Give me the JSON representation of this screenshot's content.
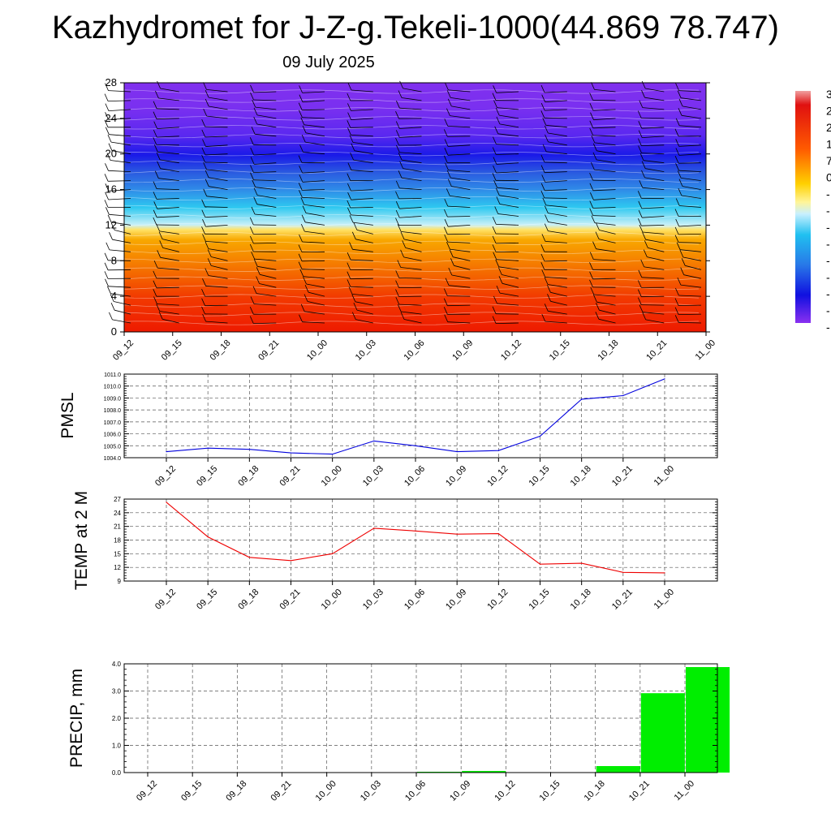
{
  "title": "Kazhydromet for J-Z-g.Tekeli-1000(44.869 78.747)",
  "subtitle": "09 July 2025",
  "colors": {
    "pmsl_line": "#0000dd",
    "temp_line": "#ee0000",
    "precip_bar": "#00ee00",
    "barb": "#000000"
  },
  "time_labels": [
    "09_12",
    "09_15",
    "09_18",
    "09_21",
    "10_00",
    "10_03",
    "10_06",
    "10_09",
    "10_12",
    "10_15",
    "10_18",
    "10_21",
    "11_00"
  ],
  "colorbar_labels": [
    "3",
    "2",
    "2",
    "1",
    "7",
    "0",
    "-",
    "-",
    "-",
    "-",
    "-",
    "-",
    "-",
    "-",
    "-"
  ],
  "chart_data": [
    {
      "type": "heatmap",
      "name_hint": "vertical cross-section",
      "y_ticks": [
        0,
        4,
        8,
        12,
        16,
        20,
        24,
        28
      ],
      "ylim": [
        0,
        28
      ],
      "x": [
        "09_12",
        "09_15",
        "09_18",
        "09_21",
        "10_00",
        "10_03",
        "10_06",
        "10_09",
        "10_12",
        "10_15",
        "10_18",
        "10_21",
        "11_00"
      ],
      "levels": [
        1,
        2,
        3,
        4,
        5,
        6,
        7,
        8,
        9,
        10,
        11,
        12,
        13,
        14,
        15,
        16,
        17,
        18,
        19,
        20,
        21,
        22,
        23,
        24,
        25,
        26,
        27
      ],
      "colormap": "blue-violet aloft, cyan near 14, yellow near 12, orange-red near surface",
      "wind_barbs": true
    },
    {
      "type": "line",
      "ylabel": "PMSL",
      "categories": [
        "09_12",
        "09_15",
        "09_18",
        "09_21",
        "10_00",
        "10_03",
        "10_06",
        "10_09",
        "10_12",
        "10_15",
        "10_18",
        "10_21",
        "11_00"
      ],
      "values": [
        1004.5,
        1004.8,
        1004.7,
        1004.4,
        1004.3,
        1005.4,
        1005.0,
        1004.5,
        1004.6,
        1005.8,
        1008.9,
        1009.2,
        1010.6
      ],
      "ylim": [
        1004.0,
        1011.0
      ],
      "y_ticks": [
        "1004.0",
        "1005.0",
        "1006.0",
        "1007.0",
        "1008.0",
        "1009.0",
        "1010.0",
        "1011.0"
      ],
      "grid": true
    },
    {
      "type": "line",
      "ylabel": "TEMP at 2 M",
      "categories": [
        "09_12",
        "09_15",
        "09_18",
        "09_21",
        "10_00",
        "10_03",
        "10_06",
        "10_09",
        "10_12",
        "10_15",
        "10_18",
        "10_21",
        "11_00"
      ],
      "values": [
        26.3,
        18.7,
        14.2,
        13.5,
        15.0,
        20.6,
        20.0,
        19.3,
        19.4,
        12.7,
        12.9,
        10.9,
        10.8
      ],
      "ylim": [
        9,
        27
      ],
      "y_ticks": [
        "9",
        "12",
        "15",
        "18",
        "21",
        "24",
        "27"
      ],
      "grid": true
    },
    {
      "type": "bar",
      "ylabel": "PRECIP, mm",
      "categories": [
        "09_12",
        "09_15",
        "09_18",
        "09_21",
        "10_00",
        "10_03",
        "10_06",
        "10_09",
        "10_12",
        "10_15",
        "10_18",
        "10_21",
        "11_00"
      ],
      "values": [
        0,
        0,
        0,
        0,
        0,
        0,
        0.03,
        0.06,
        0,
        0,
        0.24,
        2.92,
        3.88
      ],
      "ylim": [
        0,
        4.0
      ],
      "y_ticks": [
        "0.0",
        "1.0",
        "2.0",
        "3.0",
        "4.0"
      ],
      "grid": true
    }
  ]
}
